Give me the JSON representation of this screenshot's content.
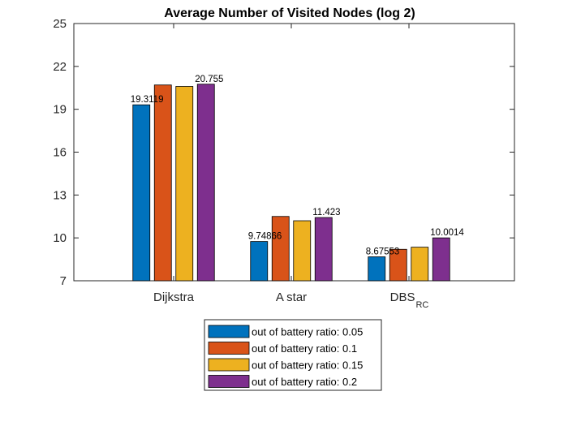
{
  "chart_data": {
    "type": "bar",
    "title": "Average Number of Visited Nodes (log 2)",
    "categories": [
      {
        "label": "Dijkstra",
        "subscript": ""
      },
      {
        "label": "A star",
        "subscript": ""
      },
      {
        "label": "DBS",
        "subscript": "RC"
      }
    ],
    "series": [
      {
        "name": "out of battery ratio: 0.05",
        "color": "#0072BD",
        "values": [
          19.3119,
          9.74866,
          8.67553
        ]
      },
      {
        "name": "out of battery ratio: 0.1",
        "color": "#D95319",
        "values": [
          20.7,
          11.5,
          9.2
        ]
      },
      {
        "name": "out of battery ratio: 0.15",
        "color": "#EDB120",
        "values": [
          20.6,
          11.2,
          9.35
        ]
      },
      {
        "name": "out of battery ratio: 0.2",
        "color": "#7E2F8E",
        "values": [
          20.755,
          11.423,
          10.0014
        ]
      }
    ],
    "data_labels": [
      {
        "series": 0,
        "category": 0,
        "text": "19.3119"
      },
      {
        "series": 3,
        "category": 0,
        "text": "20.755"
      },
      {
        "series": 0,
        "category": 1,
        "text": "9.74866"
      },
      {
        "series": 3,
        "category": 1,
        "text": "11.423"
      },
      {
        "series": 0,
        "category": 2,
        "text": "8.67553"
      },
      {
        "series": 3,
        "category": 2,
        "text": "10.0014"
      }
    ],
    "y_ticks": [
      7,
      10,
      13,
      16,
      19,
      22,
      25
    ],
    "ylim": [
      7,
      25
    ],
    "grid": false,
    "legend_position": "below plot"
  }
}
